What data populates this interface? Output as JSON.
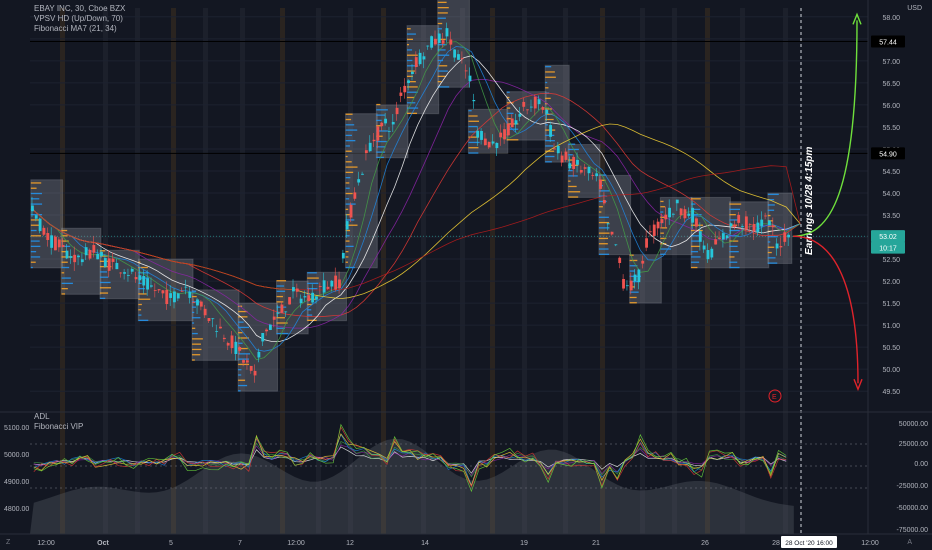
{
  "window": {
    "symbol_title": "EBAY INC, 30, Cboe BZX",
    "currency": "USD",
    "corner_left": "Z",
    "corner_right": "A"
  },
  "indicators": {
    "main": [
      "VPSV HD (Up/Down, 70)",
      "Fibonacci MA7 (21, 34)"
    ],
    "lower": [
      "ADL",
      "Fibonacci VIP"
    ]
  },
  "price_axis": {
    "ticks": [
      "58.00",
      "57.50",
      "57.00",
      "56.50",
      "56.00",
      "55.50",
      "55.00",
      "54.50",
      "54.00",
      "53.50",
      "53.00",
      "52.50",
      "52.00",
      "51.50",
      "51.00",
      "50.50",
      "50.00",
      "49.50"
    ],
    "tags": [
      {
        "label": "57.44",
        "value": 57.44,
        "style": "black"
      },
      {
        "label": "54.90",
        "value": 54.9,
        "style": "black"
      },
      {
        "label": "53.02",
        "value": 53.02,
        "style": "teal"
      },
      {
        "label": "10:17",
        "value": 52.76,
        "style": "teal"
      }
    ]
  },
  "time_axis": {
    "labels": [
      "12:00",
      "Oct",
      "5",
      "7",
      "12:00",
      "12",
      "14",
      "19",
      "21",
      "26",
      "28",
      "12:00"
    ],
    "crosshair_label": "28 Oct '20  16:00"
  },
  "annotation": {
    "earnings_text": "Earnings 10/28 4:15pm",
    "earnings_marker": "E",
    "up_color": "#6fe03c",
    "down_color": "#e0232b"
  },
  "lower_pane": {
    "left_ticks": [
      "5100.00",
      "5000.00",
      "4900.00",
      "4800.00"
    ],
    "right_ticks": [
      "50000.00",
      "25000.00",
      "0.00",
      "-25000.00",
      "-50000.00",
      "-75000.00"
    ]
  },
  "colors": {
    "background": "#131722",
    "up_candle": "#26c6da",
    "down_candle": "#ef5350",
    "box": "#9598a1",
    "volume_up": "#2196f3",
    "volume_down": "#ffa726"
  },
  "chart_data": {
    "type": "candlestick",
    "price_range": [
      49.3,
      58.2
    ],
    "price_path": [
      [
        0,
        53.6
      ],
      [
        2,
        53.0
      ],
      [
        4,
        52.7
      ],
      [
        6,
        52.5
      ],
      [
        8,
        52.7
      ],
      [
        10,
        52.4
      ],
      [
        12,
        52.3
      ],
      [
        14,
        52.0
      ],
      [
        16,
        51.8
      ],
      [
        18,
        51.6
      ],
      [
        20,
        51.9
      ],
      [
        22,
        51.4
      ],
      [
        24,
        51.0
      ],
      [
        26,
        50.6
      ],
      [
        28,
        50.1
      ],
      [
        29,
        49.8
      ],
      [
        30,
        50.8
      ],
      [
        32,
        51.2
      ],
      [
        34,
        51.7
      ],
      [
        36,
        51.6
      ],
      [
        38,
        51.9
      ],
      [
        40,
        52.0
      ],
      [
        41,
        53.2
      ],
      [
        42,
        54.0
      ],
      [
        44,
        55.1
      ],
      [
        46,
        55.6
      ],
      [
        47,
        55.5
      ],
      [
        48,
        56.2
      ],
      [
        50,
        57.0
      ],
      [
        52,
        57.4
      ],
      [
        54,
        57.6
      ],
      [
        56,
        56.9
      ],
      [
        57,
        56.6
      ],
      [
        58,
        55.4
      ],
      [
        60,
        55.1
      ],
      [
        62,
        55.4
      ],
      [
        64,
        55.9
      ],
      [
        66,
        56.1
      ],
      [
        67,
        55.8
      ],
      [
        68,
        55.0
      ],
      [
        70,
        54.7
      ],
      [
        72,
        54.5
      ],
      [
        74,
        54.2
      ],
      [
        75,
        53.2
      ],
      [
        76,
        52.8
      ],
      [
        77,
        52.0
      ],
      [
        78,
        51.9
      ],
      [
        79,
        52.1
      ],
      [
        80,
        52.9
      ],
      [
        82,
        53.4
      ],
      [
        84,
        53.7
      ],
      [
        86,
        53.5
      ],
      [
        88,
        52.6
      ],
      [
        90,
        53.0
      ],
      [
        92,
        53.4
      ],
      [
        94,
        53.2
      ],
      [
        96,
        53.4
      ],
      [
        97,
        52.8
      ],
      [
        98,
        53.0
      ]
    ],
    "boxes": [
      {
        "from": 0,
        "to": 4,
        "high": 54.3,
        "low": 52.3
      },
      {
        "from": 4,
        "to": 9,
        "high": 53.2,
        "low": 51.7
      },
      {
        "from": 9,
        "to": 14,
        "high": 52.7,
        "low": 51.6
      },
      {
        "from": 14,
        "to": 21,
        "high": 52.5,
        "low": 51.1
      },
      {
        "from": 21,
        "to": 27,
        "high": 51.8,
        "low": 50.2
      },
      {
        "from": 27,
        "to": 32,
        "high": 51.5,
        "low": 49.5
      },
      {
        "from": 32,
        "to": 36,
        "high": 52.0,
        "low": 50.8
      },
      {
        "from": 36,
        "to": 41,
        "high": 52.2,
        "low": 51.1
      },
      {
        "from": 41,
        "to": 45,
        "high": 55.8,
        "low": 52.3
      },
      {
        "from": 45,
        "to": 49,
        "high": 56.0,
        "low": 54.8
      },
      {
        "from": 49,
        "to": 53,
        "high": 57.8,
        "low": 55.8
      },
      {
        "from": 53,
        "to": 57,
        "high": 58.4,
        "low": 56.4
      },
      {
        "from": 57,
        "to": 62,
        "high": 55.9,
        "low": 54.9
      },
      {
        "from": 62,
        "to": 67,
        "high": 56.3,
        "low": 55.2
      },
      {
        "from": 67,
        "to": 70,
        "high": 56.9,
        "low": 54.7
      },
      {
        "from": 70,
        "to": 74,
        "high": 55.1,
        "low": 53.9
      },
      {
        "from": 74,
        "to": 78,
        "high": 54.4,
        "low": 52.6
      },
      {
        "from": 78,
        "to": 82,
        "high": 52.6,
        "low": 51.5
      },
      {
        "from": 82,
        "to": 86,
        "high": 53.9,
        "low": 52.6
      },
      {
        "from": 86,
        "to": 91,
        "high": 53.9,
        "low": 52.3
      },
      {
        "from": 91,
        "to": 96,
        "high": 53.8,
        "low": 52.3
      },
      {
        "from": 96,
        "to": 99,
        "high": 54.0,
        "low": 52.4
      }
    ],
    "moving_averages": [
      {
        "color": "#e53935",
        "lag": 20
      },
      {
        "color": "#8e24aa",
        "lag": 13
      },
      {
        "color": "#ffffff",
        "lag": 8
      },
      {
        "color": "#1e88e5",
        "lag": 5
      },
      {
        "color": "#43a047",
        "lag": 3
      },
      {
        "color": "#fdd835",
        "lag": 34
      },
      {
        "color": "#b71c1c",
        "lag": 55
      }
    ],
    "projection": {
      "start": 53.02,
      "up_target": 58.1,
      "down_target": 49.5
    }
  }
}
